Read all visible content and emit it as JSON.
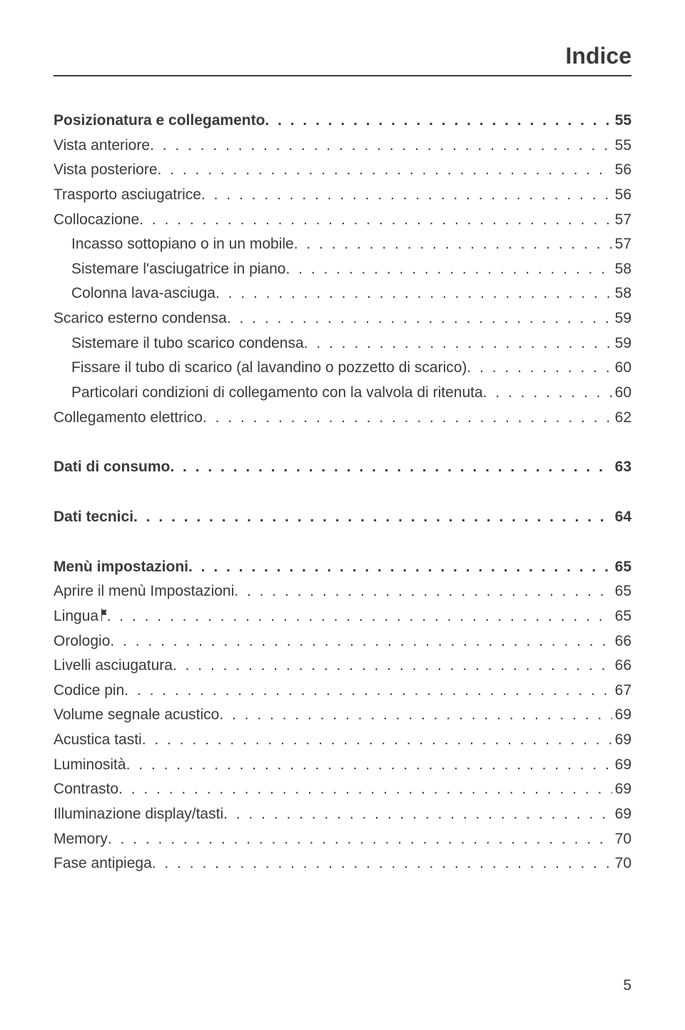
{
  "title": "Indice",
  "pageNumber": "5",
  "colors": {
    "text": "#3a3a3a",
    "background": "#ffffff",
    "rule": "#3a3a3a"
  },
  "typography": {
    "title_fontsize": 32,
    "body_fontsize": 21,
    "line_height": 1.65
  },
  "sections": [
    {
      "entries": [
        {
          "label": "Posizionatura e collegamento",
          "page": "55",
          "bold": true,
          "indent": 0
        },
        {
          "label": "Vista anteriore",
          "page": "55",
          "bold": false,
          "indent": 0
        },
        {
          "label": "Vista posteriore",
          "page": "56",
          "bold": false,
          "indent": 0
        },
        {
          "label": "Trasporto asciugatrice",
          "page": "56",
          "bold": false,
          "indent": 0
        },
        {
          "label": "Collocazione",
          "page": "57",
          "bold": false,
          "indent": 0
        },
        {
          "label": "Incasso sottopiano o in un mobile",
          "page": "57",
          "bold": false,
          "indent": 1
        },
        {
          "label": "Sistemare l'asciugatrice in piano",
          "page": "58",
          "bold": false,
          "indent": 1
        },
        {
          "label": "Colonna lava-asciuga",
          "page": "58",
          "bold": false,
          "indent": 1
        },
        {
          "label": "Scarico esterno condensa",
          "page": "59",
          "bold": false,
          "indent": 0
        },
        {
          "label": "Sistemare il tubo scarico condensa",
          "page": "59",
          "bold": false,
          "indent": 1
        },
        {
          "label": "Fissare il tubo di scarico (al lavandino o pozzetto di scarico)",
          "page": "60",
          "bold": false,
          "indent": 1
        },
        {
          "label": "Particolari condizioni di collegamento con la valvola di ritenuta",
          "page": "60",
          "bold": false,
          "indent": 1
        },
        {
          "label": "Collegamento elettrico",
          "page": "62",
          "bold": false,
          "indent": 0
        }
      ]
    },
    {
      "entries": [
        {
          "label": "Dati di consumo",
          "page": "63",
          "bold": true,
          "indent": 0
        }
      ]
    },
    {
      "entries": [
        {
          "label": "Dati tecnici",
          "page": "64",
          "bold": true,
          "indent": 0
        }
      ]
    },
    {
      "entries": [
        {
          "label": "Menù impostazioni",
          "page": "65",
          "bold": true,
          "indent": 0
        },
        {
          "label": "Aprire il menù Impostazioni",
          "page": "65",
          "bold": false,
          "indent": 0
        },
        {
          "label": "Lingua",
          "page": "65",
          "bold": false,
          "indent": 0,
          "hasFlag": true
        },
        {
          "label": "Orologio",
          "page": "66",
          "bold": false,
          "indent": 0
        },
        {
          "label": "Livelli asciugatura",
          "page": "66",
          "bold": false,
          "indent": 0
        },
        {
          "label": "Codice pin",
          "page": "67",
          "bold": false,
          "indent": 0
        },
        {
          "label": "Volume segnale acustico",
          "page": "69",
          "bold": false,
          "indent": 0
        },
        {
          "label": "Acustica tasti",
          "page": "69",
          "bold": false,
          "indent": 0
        },
        {
          "label": "Luminosità",
          "page": "69",
          "bold": false,
          "indent": 0
        },
        {
          "label": "Contrasto",
          "page": "69",
          "bold": false,
          "indent": 0
        },
        {
          "label": "Illuminazione display/tasti",
          "page": "69",
          "bold": false,
          "indent": 0
        },
        {
          "label": "Memory",
          "page": "70",
          "bold": false,
          "indent": 0
        },
        {
          "label": "Fase antipiega",
          "page": "70",
          "bold": false,
          "indent": 0
        }
      ]
    }
  ]
}
